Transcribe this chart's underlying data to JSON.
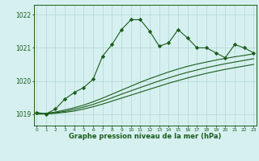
{
  "x": [
    0,
    1,
    2,
    3,
    4,
    5,
    6,
    7,
    8,
    9,
    10,
    11,
    12,
    13,
    14,
    15,
    16,
    17,
    18,
    19,
    20,
    21,
    22,
    23
  ],
  "main_line": [
    1019.05,
    1019.0,
    1019.15,
    1019.45,
    1019.65,
    1019.8,
    1020.05,
    1020.75,
    1021.1,
    1021.55,
    1021.85,
    1021.85,
    1021.5,
    1021.05,
    1021.15,
    1021.55,
    1021.3,
    1021.0,
    1021.0,
    1020.85,
    1020.7,
    1021.1,
    1021.0,
    1020.85
  ],
  "trend_line1": [
    1019.0,
    1019.02,
    1019.06,
    1019.12,
    1019.19,
    1019.27,
    1019.37,
    1019.48,
    1019.6,
    1019.72,
    1019.84,
    1019.96,
    1020.07,
    1020.17,
    1020.27,
    1020.36,
    1020.44,
    1020.51,
    1020.57,
    1020.63,
    1020.68,
    1020.73,
    1020.77,
    1020.82
  ],
  "trend_line2": [
    1019.0,
    1019.01,
    1019.04,
    1019.08,
    1019.14,
    1019.21,
    1019.29,
    1019.39,
    1019.49,
    1019.6,
    1019.7,
    1019.8,
    1019.9,
    1020.0,
    1020.09,
    1020.18,
    1020.26,
    1020.33,
    1020.4,
    1020.46,
    1020.52,
    1020.57,
    1020.62,
    1020.67
  ],
  "trend_line3": [
    1019.0,
    1019.0,
    1019.02,
    1019.05,
    1019.09,
    1019.15,
    1019.22,
    1019.3,
    1019.39,
    1019.48,
    1019.57,
    1019.66,
    1019.75,
    1019.84,
    1019.93,
    1020.01,
    1020.09,
    1020.16,
    1020.23,
    1020.29,
    1020.35,
    1020.4,
    1020.45,
    1020.5
  ],
  "ylim": [
    1018.65,
    1022.3
  ],
  "yticks": [
    1019,
    1020,
    1021,
    1022
  ],
  "xticks": [
    0,
    1,
    2,
    3,
    4,
    5,
    6,
    7,
    8,
    9,
    10,
    11,
    12,
    13,
    14,
    15,
    16,
    17,
    18,
    19,
    20,
    21,
    22,
    23
  ],
  "xlabel": "Graphe pression niveau de la mer (hPa)",
  "bg_color": "#d6f0f0",
  "line_color": "#1a5c1a",
  "grid_color": "#b8dada"
}
